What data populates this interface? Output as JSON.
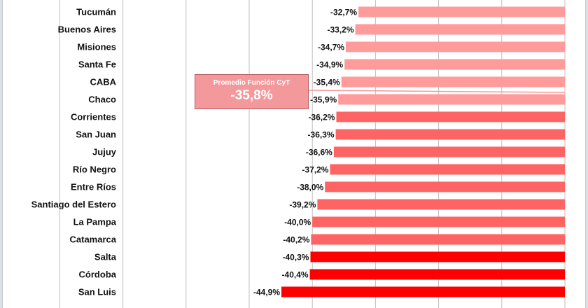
{
  "chart_data": {
    "type": "bar",
    "orientation": "horizontal",
    "title": "",
    "xlabel": "",
    "ylabel": "",
    "xlim": [
      -80,
      0
    ],
    "grid": true,
    "categories": [
      "Tucumán",
      "Buenos Aires",
      "Misiones",
      "Santa Fe",
      "CABA",
      "Chaco",
      "Corrientes",
      "San Juan",
      "Jujuy",
      "Río Negro",
      "Entre Ríos",
      "Santiago del Estero",
      "La Pampa",
      "Catamarca",
      "Salta",
      "Córdoba",
      "San Luis"
    ],
    "values": [
      -32.7,
      -33.2,
      -34.7,
      -34.9,
      -35.4,
      -35.9,
      -36.2,
      -36.3,
      -36.6,
      -37.2,
      -38.0,
      -39.2,
      -40.0,
      -40.2,
      -40.3,
      -40.4,
      -44.9
    ],
    "value_labels": [
      "-32,7%",
      "-33,2%",
      "-34,7%",
      "-34,9%",
      "-35,4%",
      "-35,9%",
      "-36,2%",
      "-36,3%",
      "-36,6%",
      "-37,2%",
      "-38,0%",
      "-39,2%",
      "-40,0%",
      "-40,2%",
      "-40,3%",
      "-40,4%",
      "-44,9%"
    ],
    "bar_colors": [
      "#ff9b9b",
      "#ff9b9b",
      "#ff9b9b",
      "#ff9b9b",
      "#ff9b9b",
      "#ff9b9b",
      "#ff6464",
      "#ff6464",
      "#ff6464",
      "#ff6464",
      "#ff6464",
      "#ff6464",
      "#ff6464",
      "#ff6464",
      "#ff0000",
      "#ff0000",
      "#ff0000"
    ],
    "average": {
      "title": "Promedio Función CyT",
      "value": -35.8,
      "label": "-35,8%",
      "color": "#f3999b"
    }
  }
}
